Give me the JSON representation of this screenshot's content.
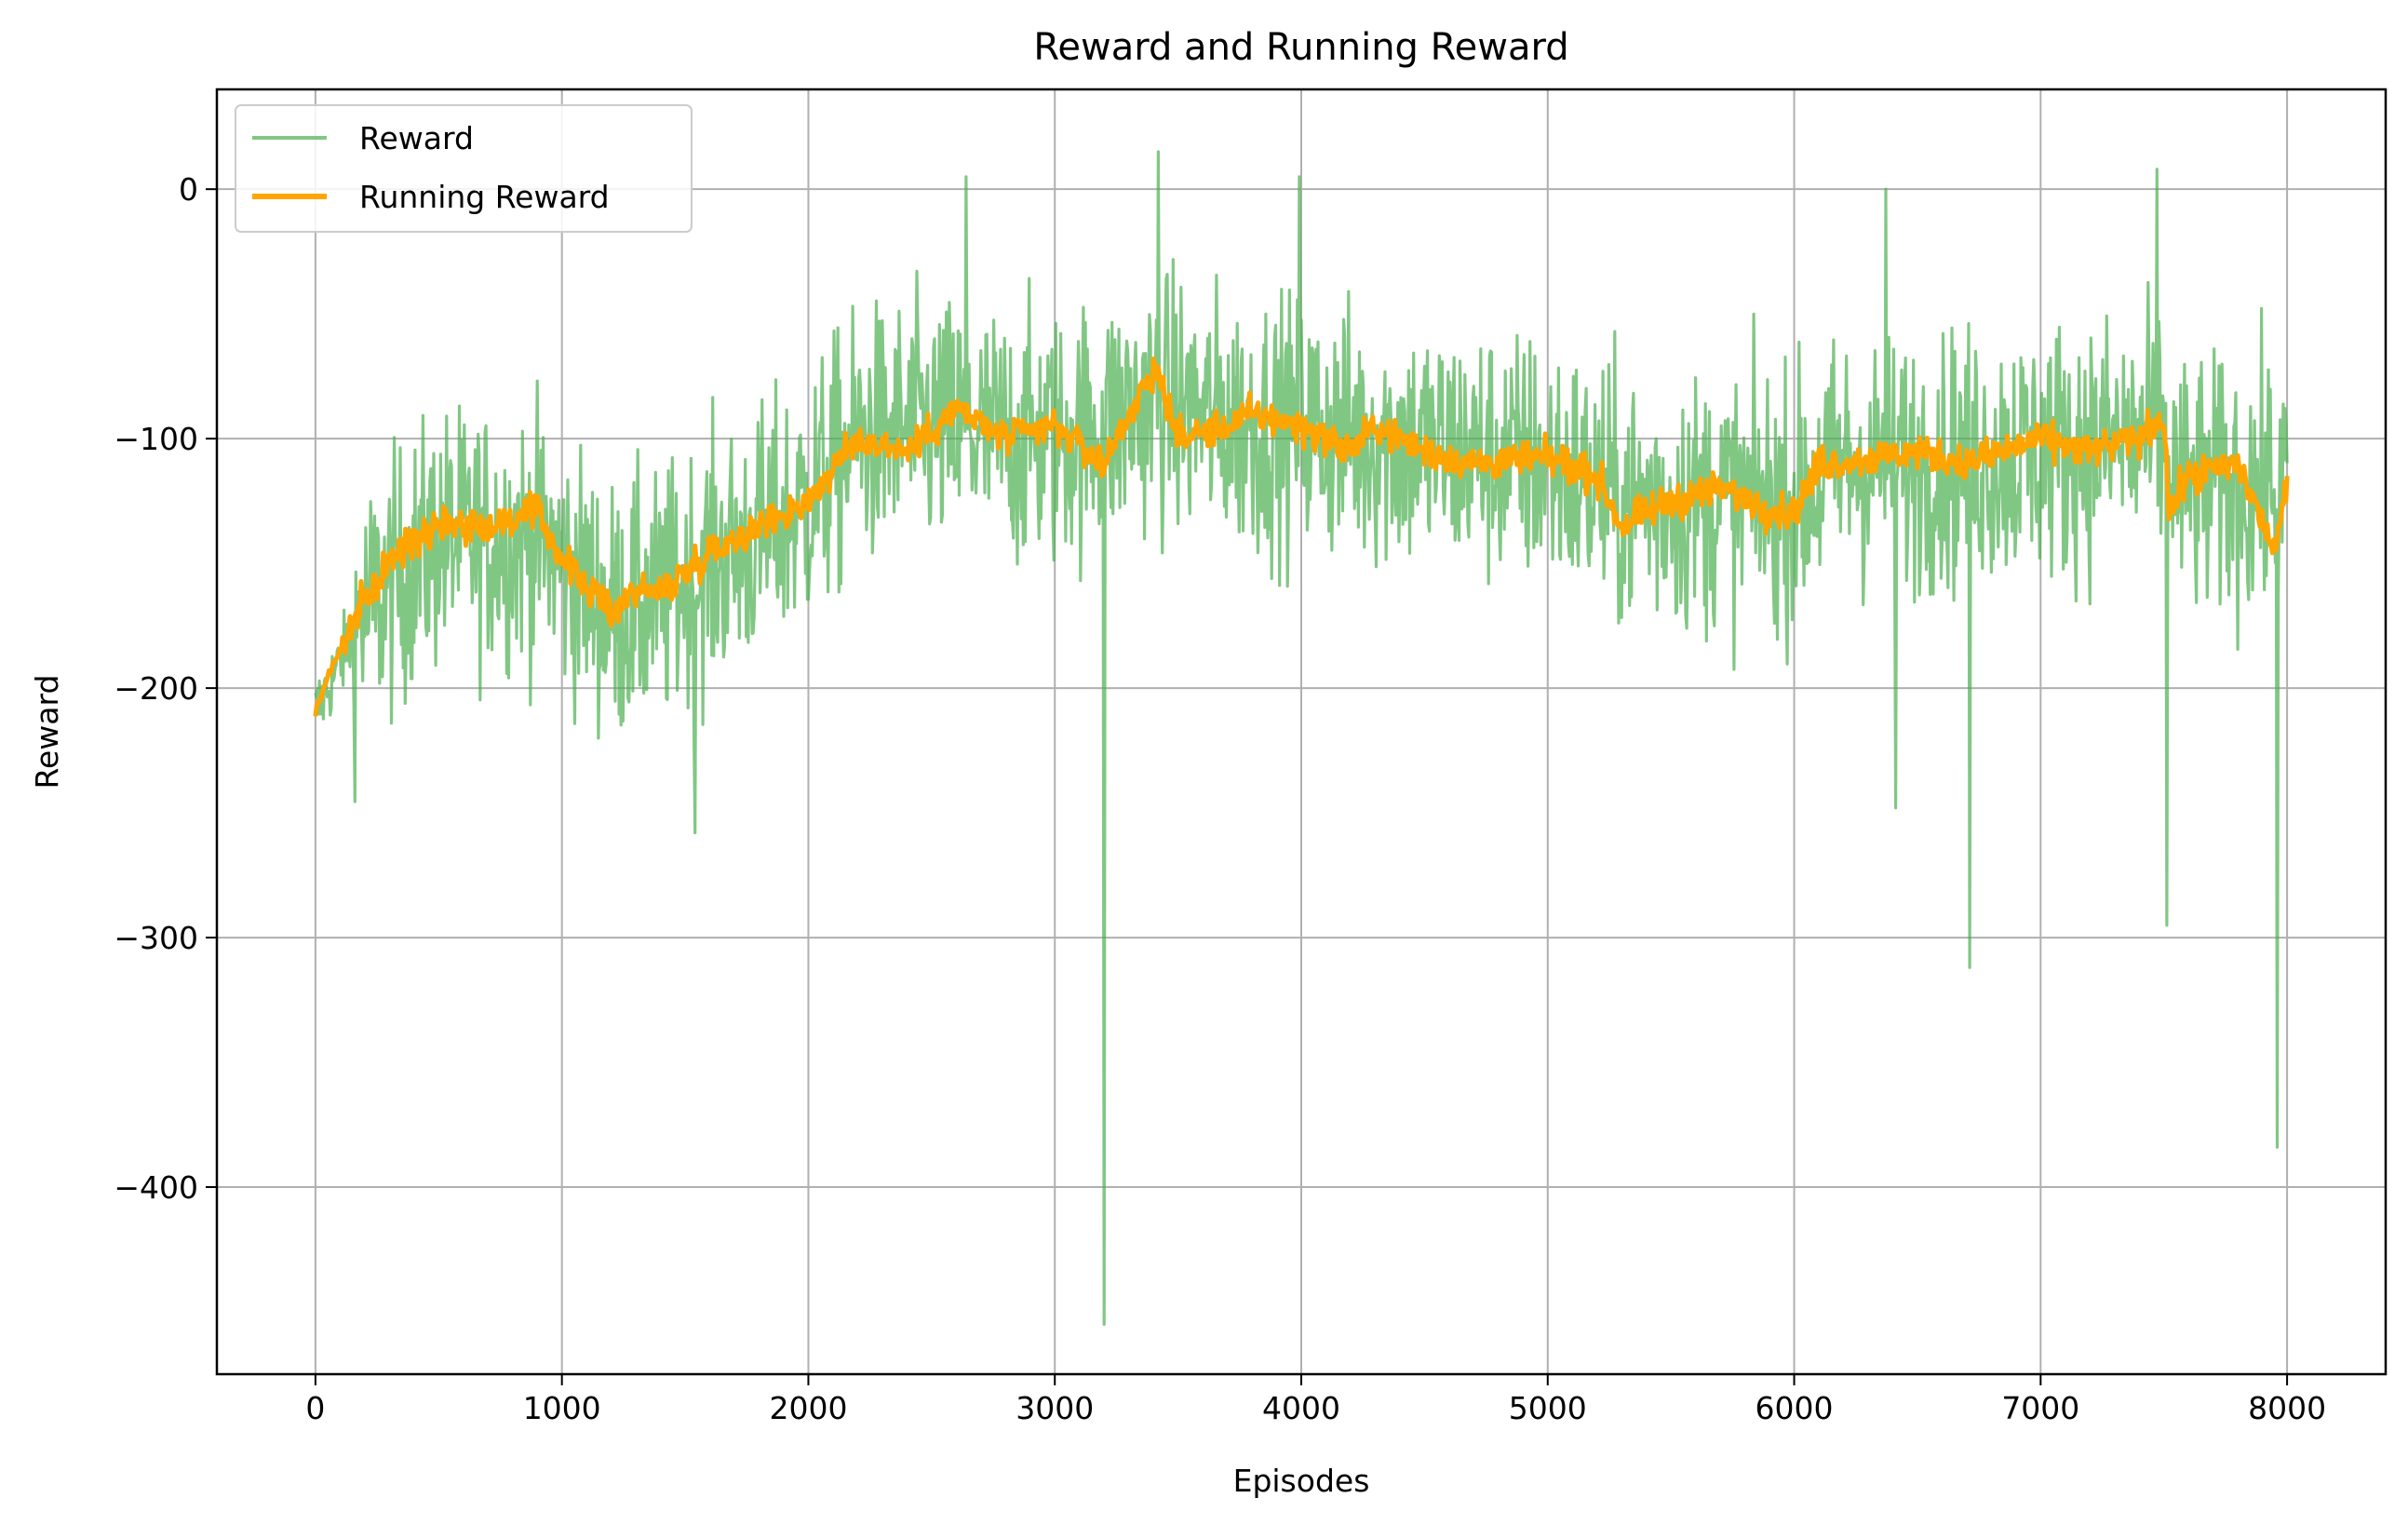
{
  "chart_data": {
    "type": "line",
    "title": "Reward and Running Reward",
    "xlabel": "Episodes",
    "ylabel": "Reward",
    "xlim": [
      -400,
      8400
    ],
    "ylim": [
      -475,
      40
    ],
    "xticks": [
      0,
      1000,
      2000,
      3000,
      4000,
      5000,
      6000,
      7000,
      8000
    ],
    "yticks": [
      -400,
      -300,
      -200,
      -100,
      0
    ],
    "grid": true,
    "legend_position": "top-left",
    "series": [
      {
        "name": "Reward",
        "color": "#4caf50",
        "opacity": 0.7,
        "style": "noisy-raw-episode-reward",
        "points": [
          [
            0,
            -210
          ],
          [
            100,
            -190
          ],
          [
            200,
            -170
          ],
          [
            300,
            -160
          ],
          [
            400,
            -150
          ],
          [
            500,
            -140
          ],
          [
            700,
            -140
          ],
          [
            900,
            -140
          ],
          [
            1000,
            -150
          ],
          [
            1200,
            -170
          ],
          [
            1400,
            -165
          ],
          [
            1600,
            -150
          ],
          [
            1800,
            -140
          ],
          [
            2000,
            -125
          ],
          [
            2200,
            -100
          ],
          [
            2500,
            -95
          ],
          [
            2800,
            -100
          ],
          [
            3000,
            -100
          ],
          [
            3200,
            -95
          ],
          [
            3400,
            -85
          ],
          [
            3600,
            -90
          ],
          [
            3800,
            -95
          ],
          [
            4000,
            -95
          ],
          [
            4300,
            -100
          ],
          [
            4600,
            -105
          ],
          [
            5000,
            -110
          ],
          [
            5300,
            -125
          ],
          [
            5600,
            -125
          ],
          [
            6000,
            -125
          ],
          [
            6200,
            -110
          ],
          [
            6500,
            -110
          ],
          [
            7000,
            -105
          ],
          [
            7500,
            -100
          ],
          [
            7550,
            -120
          ],
          [
            8000,
            -120
          ]
        ],
        "spikes": [
          [
            2640,
            5
          ],
          [
            3200,
            -455
          ],
          [
            3420,
            15
          ],
          [
            3990,
            5
          ],
          [
            6370,
            0
          ],
          [
            6410,
            -248
          ],
          [
            6710,
            -312
          ],
          [
            7470,
            8
          ],
          [
            7510,
            -295
          ],
          [
            7960,
            -384
          ],
          [
            1540,
            -258
          ]
        ]
      },
      {
        "name": "Running Reward",
        "color": "#ffa500",
        "points": [
          [
            0,
            -210
          ],
          [
            50,
            -195
          ],
          [
            100,
            -185
          ],
          [
            200,
            -165
          ],
          [
            300,
            -150
          ],
          [
            400,
            -140
          ],
          [
            500,
            -133
          ],
          [
            700,
            -135
          ],
          [
            900,
            -130
          ],
          [
            1000,
            -148
          ],
          [
            1200,
            -170
          ],
          [
            1300,
            -160
          ],
          [
            1400,
            -162
          ],
          [
            1600,
            -145
          ],
          [
            1800,
            -135
          ],
          [
            2000,
            -125
          ],
          [
            2200,
            -100
          ],
          [
            2400,
            -105
          ],
          [
            2600,
            -88
          ],
          [
            2800,
            -100
          ],
          [
            3000,
            -95
          ],
          [
            3200,
            -110
          ],
          [
            3300,
            -90
          ],
          [
            3420,
            -72
          ],
          [
            3500,
            -100
          ],
          [
            3700,
            -95
          ],
          [
            3800,
            -90
          ],
          [
            4000,
            -95
          ],
          [
            4200,
            -105
          ],
          [
            4300,
            -95
          ],
          [
            4500,
            -105
          ],
          [
            4700,
            -110
          ],
          [
            5000,
            -108
          ],
          [
            5200,
            -115
          ],
          [
            5300,
            -135
          ],
          [
            5500,
            -125
          ],
          [
            5700,
            -120
          ],
          [
            5900,
            -128
          ],
          [
            6000,
            -130
          ],
          [
            6100,
            -110
          ],
          [
            6300,
            -108
          ],
          [
            6500,
            -105
          ],
          [
            6700,
            -110
          ],
          [
            7000,
            -100
          ],
          [
            7200,
            -105
          ],
          [
            7400,
            -100
          ],
          [
            7500,
            -90
          ],
          [
            7520,
            -130
          ],
          [
            7600,
            -115
          ],
          [
            7800,
            -110
          ],
          [
            7950,
            -145
          ],
          [
            8000,
            -120
          ]
        ]
      }
    ]
  }
}
